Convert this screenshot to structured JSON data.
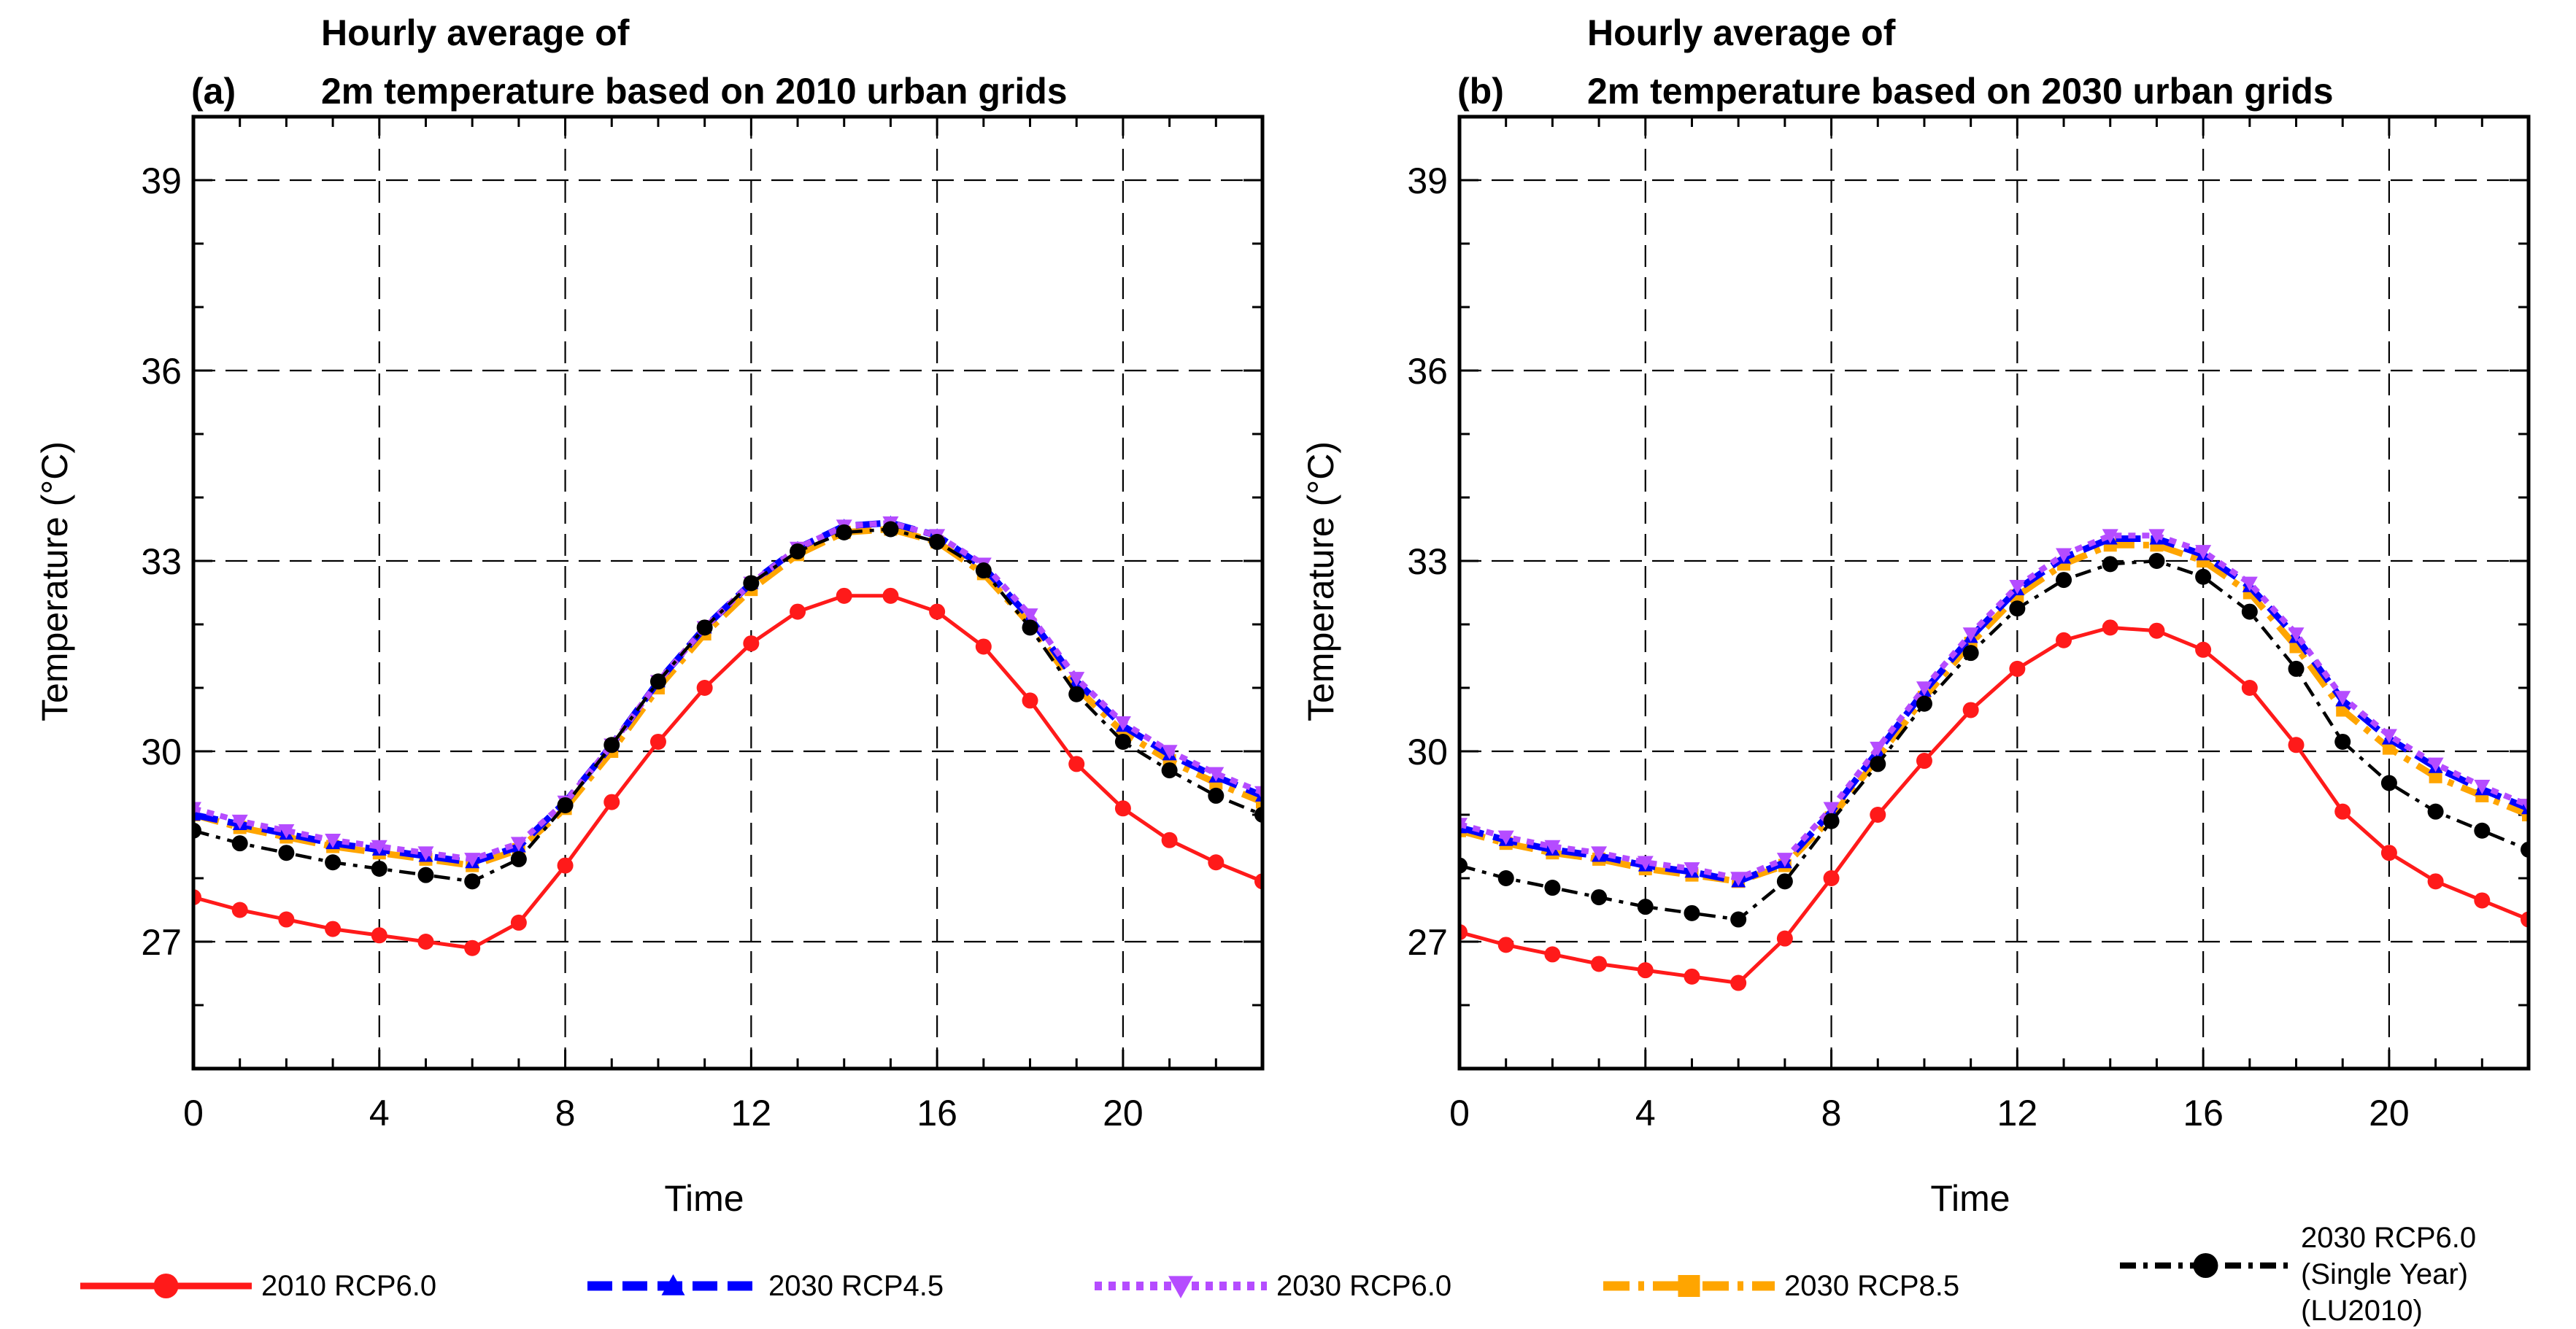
{
  "chart_data": [
    {
      "type": "line",
      "panel_label": "(a)",
      "title": "Hourly average of",
      "subtitle": "2m temperature based on 2010 urban grids",
      "xlabel": "Time",
      "ylabel": "Temperature (°C)",
      "xlim": [
        0,
        23
      ],
      "ylim": [
        25,
        40
      ],
      "xticks": [
        "0",
        "4",
        "8",
        "12",
        "16",
        "20"
      ],
      "yticks": [
        "27",
        "30",
        "33",
        "36",
        "39"
      ],
      "grid": "dashed",
      "x": [
        0,
        1,
        2,
        3,
        4,
        5,
        6,
        7,
        8,
        9,
        10,
        11,
        12,
        13,
        14,
        15,
        16,
        17,
        18,
        19,
        20,
        21,
        22,
        23
      ],
      "series": [
        {
          "name": "2010 RCP6.0",
          "values": [
            27.7,
            27.5,
            27.35,
            27.2,
            27.1,
            27.0,
            26.9,
            27.3,
            28.2,
            29.2,
            30.15,
            31.0,
            31.7,
            32.2,
            32.45,
            32.45,
            32.2,
            31.65,
            30.8,
            29.8,
            29.1,
            28.6,
            28.25,
            27.95
          ]
        },
        {
          "name": "2030 RCP4.5",
          "values": [
            29.0,
            28.85,
            28.7,
            28.55,
            28.45,
            28.35,
            28.25,
            28.5,
            29.2,
            30.1,
            31.1,
            31.95,
            32.65,
            33.2,
            33.55,
            33.6,
            33.4,
            32.9,
            32.1,
            31.1,
            30.4,
            29.95,
            29.6,
            29.3
          ]
        },
        {
          "name": "2030 RCP6.0",
          "values": [
            29.1,
            28.9,
            28.75,
            28.6,
            28.5,
            28.4,
            28.3,
            28.55,
            29.2,
            30.1,
            31.1,
            31.95,
            32.65,
            33.2,
            33.55,
            33.6,
            33.4,
            32.95,
            32.15,
            31.15,
            30.45,
            30.0,
            29.65,
            29.35
          ]
        },
        {
          "name": "2030 RCP8.5",
          "values": [
            29.0,
            28.8,
            28.65,
            28.5,
            28.4,
            28.3,
            28.2,
            28.45,
            29.1,
            30.0,
            31.0,
            31.85,
            32.55,
            33.1,
            33.45,
            33.5,
            33.3,
            32.8,
            32.0,
            31.0,
            30.3,
            29.85,
            29.5,
            29.2
          ]
        },
        {
          "name": "2030 RCP6.0\n(Single Year)\n(LU2010)",
          "values": [
            28.75,
            28.55,
            28.4,
            28.25,
            28.15,
            28.05,
            27.95,
            28.3,
            29.15,
            30.1,
            31.1,
            31.95,
            32.65,
            33.15,
            33.45,
            33.5,
            33.3,
            32.85,
            31.95,
            30.9,
            30.15,
            29.7,
            29.3,
            29.0
          ]
        }
      ]
    },
    {
      "type": "line",
      "panel_label": "(b)",
      "title": "Hourly average of",
      "subtitle": "2m temperature based on 2030 urban grids",
      "xlabel": "Time",
      "ylabel": "Temperature (°C)",
      "xlim": [
        0,
        23
      ],
      "ylim": [
        25,
        40
      ],
      "xticks": [
        "0",
        "4",
        "8",
        "12",
        "16",
        "20"
      ],
      "yticks": [
        "27",
        "30",
        "33",
        "36",
        "39"
      ],
      "grid": "dashed",
      "x": [
        0,
        1,
        2,
        3,
        4,
        5,
        6,
        7,
        8,
        9,
        10,
        11,
        12,
        13,
        14,
        15,
        16,
        17,
        18,
        19,
        20,
        21,
        22,
        23
      ],
      "series": [
        {
          "name": "2010 RCP6.0",
          "values": [
            27.15,
            26.95,
            26.8,
            26.65,
            26.55,
            26.45,
            26.35,
            27.05,
            28.0,
            29.0,
            29.85,
            30.65,
            31.3,
            31.75,
            31.95,
            31.9,
            31.6,
            31.0,
            30.1,
            29.05,
            28.4,
            27.95,
            27.65,
            27.35
          ]
        },
        {
          "name": "2030 RCP4.5",
          "values": [
            28.8,
            28.6,
            28.45,
            28.35,
            28.2,
            28.1,
            27.95,
            28.25,
            29.05,
            30.0,
            30.95,
            31.8,
            32.55,
            33.05,
            33.35,
            33.35,
            33.1,
            32.6,
            31.8,
            30.8,
            30.2,
            29.75,
            29.4,
            29.1
          ]
        },
        {
          "name": "2030 RCP6.0",
          "values": [
            28.85,
            28.65,
            28.5,
            28.4,
            28.25,
            28.15,
            28.0,
            28.3,
            29.1,
            30.05,
            31.0,
            31.85,
            32.6,
            33.1,
            33.4,
            33.4,
            33.15,
            32.65,
            31.85,
            30.85,
            30.25,
            29.8,
            29.45,
            29.15
          ]
        },
        {
          "name": "2030 RCP8.5",
          "values": [
            28.75,
            28.55,
            28.4,
            28.3,
            28.15,
            28.05,
            27.95,
            28.2,
            28.95,
            29.9,
            30.85,
            31.7,
            32.45,
            32.95,
            33.25,
            33.25,
            33.0,
            32.5,
            31.65,
            30.65,
            30.05,
            29.6,
            29.3,
            29.0
          ]
        },
        {
          "name": "2030 RCP6.0\n(Single Year)\n(LU2010)",
          "values": [
            28.2,
            28.0,
            27.85,
            27.7,
            27.55,
            27.45,
            27.35,
            27.95,
            28.9,
            29.8,
            30.75,
            31.55,
            32.25,
            32.7,
            32.95,
            33.0,
            32.75,
            32.2,
            31.3,
            30.15,
            29.5,
            29.05,
            28.75,
            28.45
          ]
        }
      ]
    }
  ],
  "legend": {
    "items": [
      {
        "label": "2010 RCP6.0",
        "color": "#ff1a1a",
        "style": "solid",
        "marker": "circle"
      },
      {
        "label": "2030 RCP4.5",
        "color": "#0000ff",
        "style": "dashed",
        "marker": "triangle-up"
      },
      {
        "label": "2030 RCP6.0",
        "color": "#b54cff",
        "style": "dotted",
        "marker": "triangle-down"
      },
      {
        "label": "2030 RCP8.5",
        "color": "#ffa500",
        "style": "dashdot",
        "marker": "square"
      },
      {
        "label_lines": [
          "2030 RCP6.0",
          "(Single Year)",
          "(LU2010)"
        ],
        "color": "#000000",
        "style": "dashdot",
        "marker": "circle"
      }
    ]
  }
}
